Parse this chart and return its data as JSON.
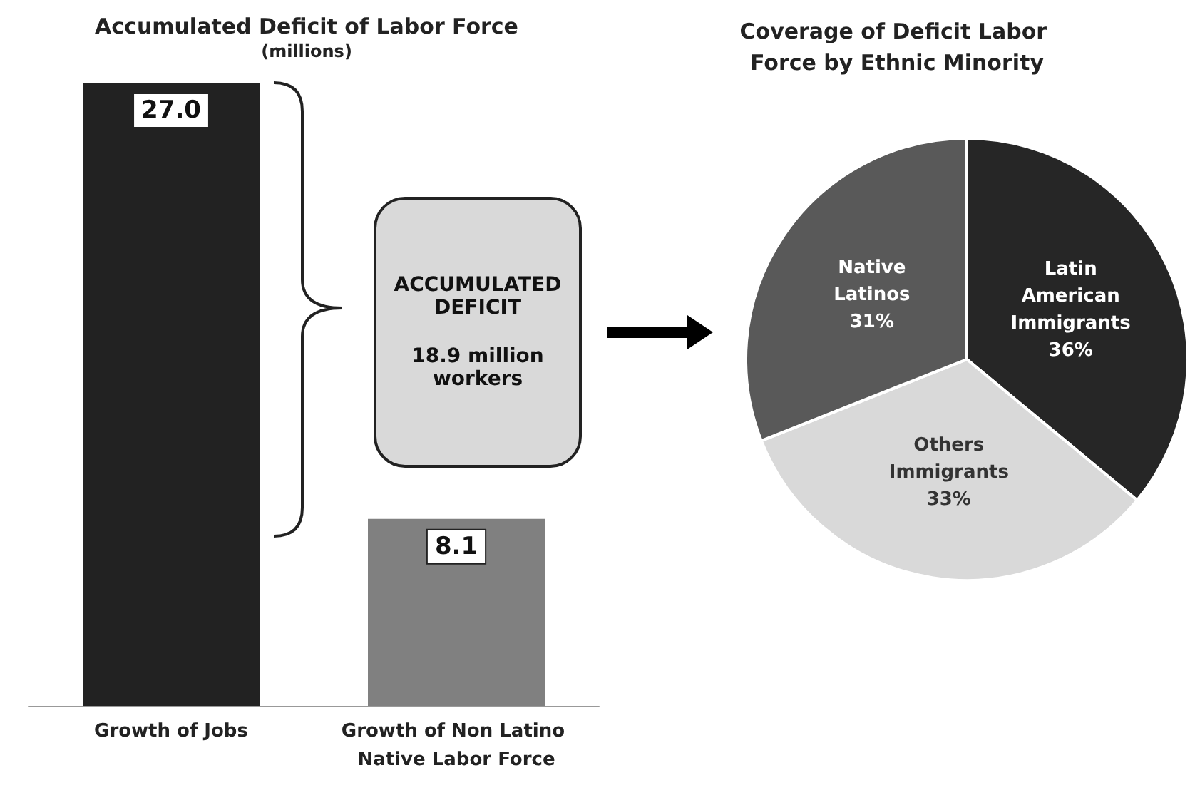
{
  "chart_data": [
    {
      "type": "bar",
      "title": "Accumulated Deficit of Labor Force",
      "subtitle": "(millions)",
      "categories": [
        "Growth of Jobs",
        "Growth of Non Latino Native Labor Force"
      ],
      "values": [
        27.0,
        8.1
      ],
      "colors": [
        "#222222",
        "#808080"
      ],
      "data_labels": true,
      "value_labels": [
        "27.0",
        "8.1"
      ],
      "annotations": [
        "ACCUMULATED DEFICIT",
        "18.9 million workers"
      ],
      "legend": false
    },
    {
      "type": "pie",
      "title": "Coverage of Deficit Labor Force by Ethnic Minority",
      "categories": [
        "Latin American Immigrants",
        "Others Immigrants",
        "Native Latinos"
      ],
      "values": [
        36,
        33,
        31
      ],
      "colors": [
        "#262626",
        "#d9d9d9",
        "#595959"
      ],
      "data_labels": true,
      "value_labels": [
        "36%",
        "33%",
        "31%"
      ],
      "legend": false
    }
  ]
}
